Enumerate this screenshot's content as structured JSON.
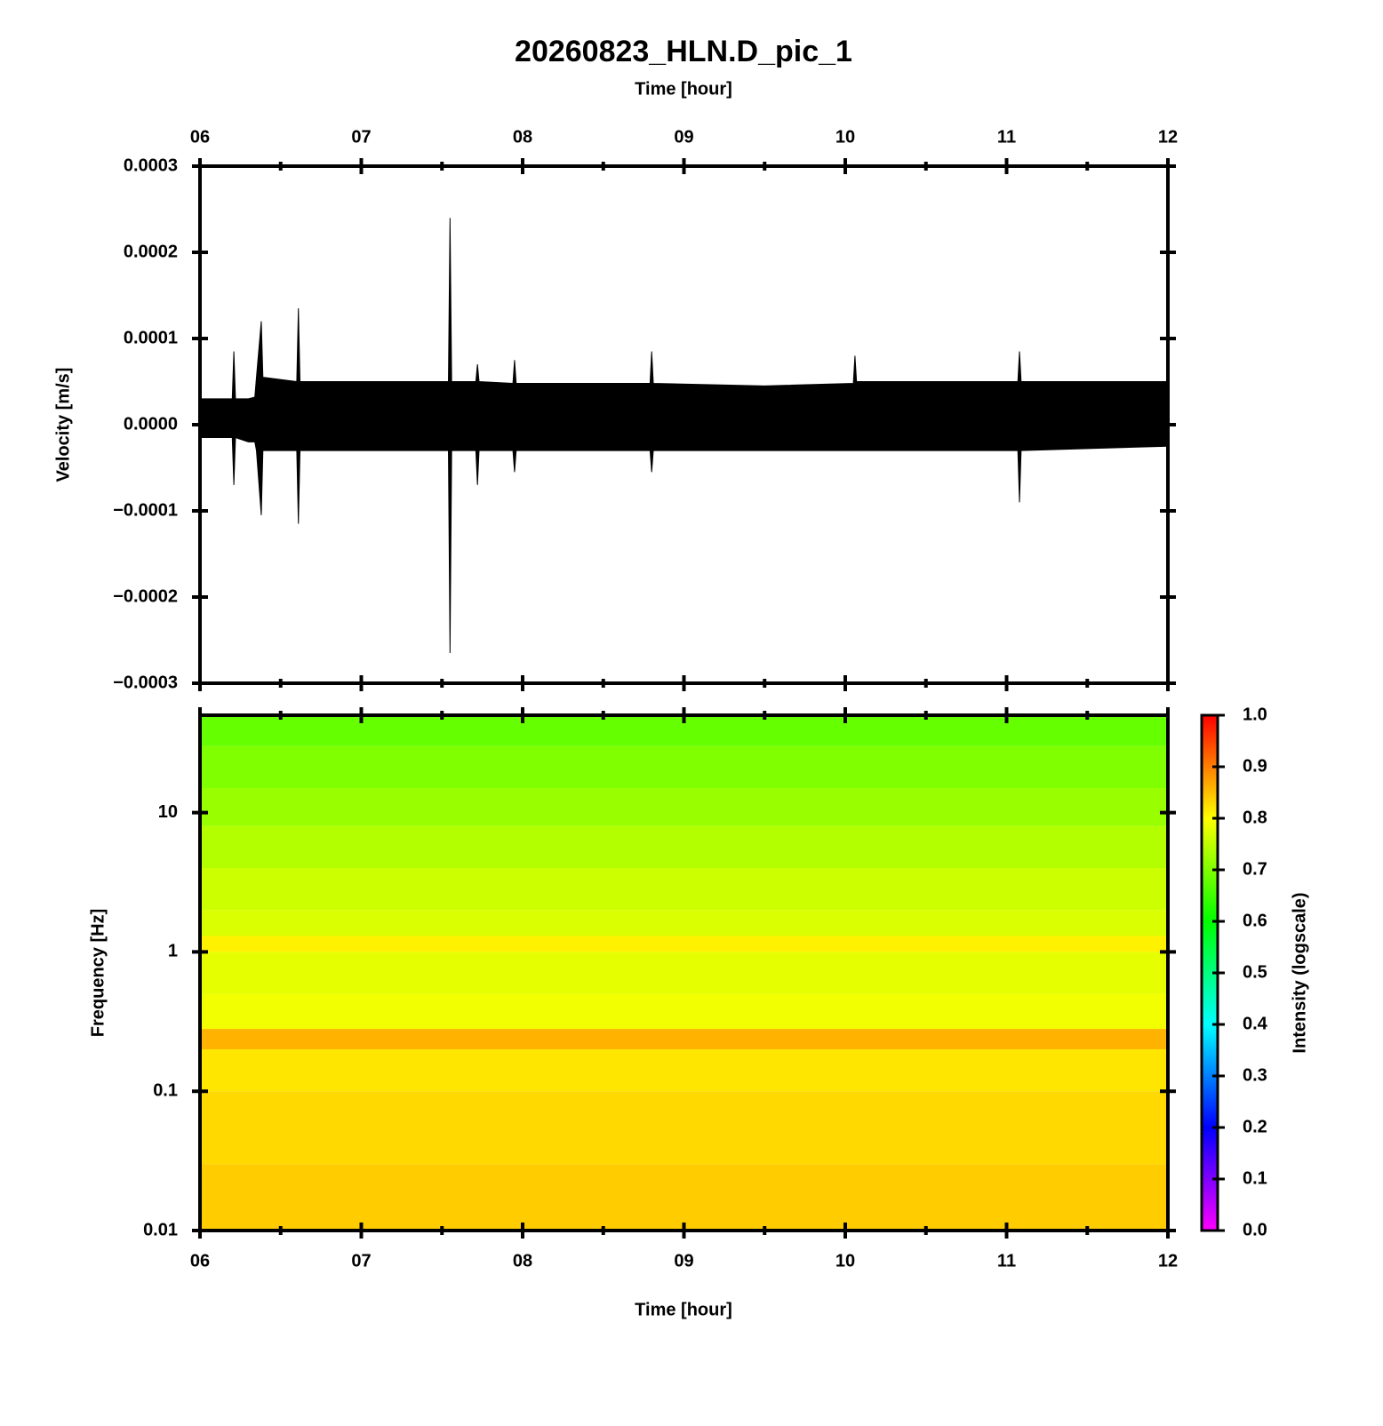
{
  "chart_data": [
    {
      "type": "area",
      "title": "20260823_HLN.D_pic_1",
      "xlabel": "Time [hour]",
      "ylabel": "Velocity [m/s]",
      "color": "#000000",
      "x": [
        6.0,
        6.2,
        6.21,
        6.22,
        6.3,
        6.34,
        6.35,
        6.38,
        6.39,
        6.6,
        6.61,
        6.62,
        7.0,
        7.54,
        7.55,
        7.56,
        7.71,
        7.72,
        7.73,
        7.94,
        7.95,
        7.96,
        8.5,
        8.79,
        8.8,
        8.81,
        9.5,
        10.05,
        10.06,
        10.07,
        10.5,
        11.07,
        11.08,
        11.09,
        12.0
      ],
      "upper": [
        3e-05,
        3e-05,
        8.5e-05,
        3e-05,
        3e-05,
        3.2e-05,
        5.5e-05,
        0.00012,
        5.5e-05,
        5e-05,
        0.000135,
        5e-05,
        5e-05,
        5e-05,
        0.00024,
        5e-05,
        5e-05,
        7e-05,
        5e-05,
        4.8e-05,
        7.5e-05,
        4.8e-05,
        4.8e-05,
        4.8e-05,
        8.5e-05,
        4.8e-05,
        4.5e-05,
        4.8e-05,
        8e-05,
        5e-05,
        5e-05,
        5e-05,
        8.5e-05,
        5e-05,
        5e-05
      ],
      "lower": [
        -1.5e-05,
        -1.5e-05,
        -7e-05,
        -1.5e-05,
        -2e-05,
        -2e-05,
        -3e-05,
        -0.000105,
        -3e-05,
        -3e-05,
        -0.000115,
        -3e-05,
        -3e-05,
        -3e-05,
        -0.000265,
        -3e-05,
        -3e-05,
        -7e-05,
        -3e-05,
        -3e-05,
        -5.5e-05,
        -3e-05,
        -3e-05,
        -3e-05,
        -5.5e-05,
        -3e-05,
        -3e-05,
        -3e-05,
        -3e-05,
        -3e-05,
        -3e-05,
        -3e-05,
        -9e-05,
        -3e-05,
        -2.5e-05
      ],
      "xlim": [
        6,
        12
      ],
      "xticks": [
        {
          "value": 6,
          "label": "06"
        },
        {
          "value": 7,
          "label": "07"
        },
        {
          "value": 8,
          "label": "08"
        },
        {
          "value": 9,
          "label": "09"
        },
        {
          "value": 10,
          "label": "10"
        },
        {
          "value": 11,
          "label": "11"
        },
        {
          "value": 12,
          "label": "12"
        }
      ],
      "ylim": [
        -0.0003,
        0.0003
      ],
      "yticks": [
        {
          "value": 0.0003,
          "label": "0.0003"
        },
        {
          "value": 0.0002,
          "label": "0.0002"
        },
        {
          "value": 0.0001,
          "label": "0.0001"
        },
        {
          "value": 0,
          "label": "0.0000"
        },
        {
          "value": -0.0001,
          "label": "−0.0001"
        },
        {
          "value": -0.0002,
          "label": "−0.0002"
        },
        {
          "value": -0.0003,
          "label": "−0.0003"
        }
      ]
    },
    {
      "type": "heatmap",
      "xlabel": "Time [hour]",
      "ylabel": "Frequency [Hz]",
      "colorbar_label": "Intensity (logscale)",
      "log_y": true,
      "ybins": [
        0.01,
        0.03,
        0.1,
        0.2,
        0.28,
        0.5,
        1,
        1.3,
        2,
        4,
        8,
        15,
        30,
        50
      ],
      "values": [
        0.84,
        0.83,
        0.82,
        0.86,
        0.79,
        0.78,
        0.81,
        0.77,
        0.76,
        0.74,
        0.72,
        0.7,
        0.68
      ],
      "colormap": [
        "#ff00ff",
        "#0000ff",
        "#00ffff",
        "#00ff00",
        "#ffff00",
        "#ff0000"
      ],
      "xlim": [
        6,
        12
      ],
      "xticks": [
        {
          "value": 6,
          "label": "06"
        },
        {
          "value": 7,
          "label": "07"
        },
        {
          "value": 8,
          "label": "08"
        },
        {
          "value": 9,
          "label": "09"
        },
        {
          "value": 10,
          "label": "10"
        },
        {
          "value": 11,
          "label": "11"
        },
        {
          "value": 12,
          "label": "12"
        }
      ],
      "ylim": [
        0.01,
        50
      ],
      "yticks": [
        0.01,
        0.1,
        1,
        10
      ],
      "zlim": [
        0,
        1
      ],
      "zticks": [
        {
          "value": 0,
          "label": "0.0"
        },
        {
          "value": 0.1,
          "label": "0.1"
        },
        {
          "value": 0.2,
          "label": "0.2"
        },
        {
          "value": 0.3,
          "label": "0.3"
        },
        {
          "value": 0.4,
          "label": "0.4"
        },
        {
          "value": 0.5,
          "label": "0.5"
        },
        {
          "value": 0.6,
          "label": "0.6"
        },
        {
          "value": 0.7,
          "label": "0.7"
        },
        {
          "value": 0.8,
          "label": "0.8"
        },
        {
          "value": 0.9,
          "label": "0.9"
        },
        {
          "value": 1,
          "label": "1.0"
        }
      ]
    }
  ]
}
